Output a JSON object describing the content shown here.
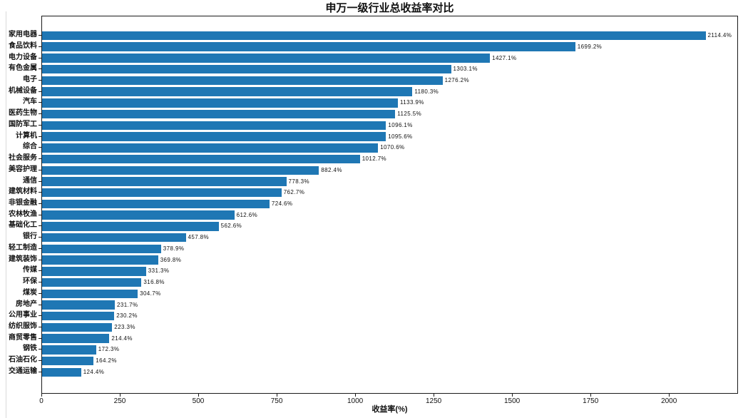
{
  "window": {
    "background": "#ffffff"
  },
  "chart_data": {
    "type": "bar",
    "orientation": "horizontal",
    "title": "申万一级行业总收益率对比",
    "xlabel": "收益率(%)",
    "ylabel": "",
    "categories": [
      "家用电器",
      "食品饮料",
      "电力设备",
      "有色金属",
      "电子",
      "机械设备",
      "汽车",
      "医药生物",
      "国防军工",
      "计算机",
      "综合",
      "社会服务",
      "美容护理",
      "通信",
      "建筑材料",
      "非银金融",
      "农林牧渔",
      "基础化工",
      "银行",
      "轻工制造",
      "建筑装饰",
      "传媒",
      "环保",
      "煤炭",
      "房地产",
      "公用事业",
      "纺织服饰",
      "商贸零售",
      "钢铁",
      "石油石化",
      "交通运输"
    ],
    "values": [
      2114.4,
      1699.2,
      1427.1,
      1303.1,
      1276.2,
      1180.3,
      1133.9,
      1125.5,
      1096.1,
      1095.6,
      1070.6,
      1012.7,
      882.4,
      778.3,
      762.7,
      724.6,
      612.6,
      562.6,
      457.8,
      378.9,
      369.8,
      331.3,
      316.8,
      304.7,
      231.7,
      230.2,
      223.3,
      214.4,
      172.3,
      164.2,
      124.4
    ],
    "value_labels": [
      "2114.4%",
      "1699.2%",
      "1427.1%",
      "1303.1%",
      "1276.2%",
      "1180.3%",
      "1133.9%",
      "1125.5%",
      "1096.1%",
      "1095.6%",
      "1070.6%",
      "1012.7%",
      "882.4%",
      "778.3%",
      "762.7%",
      "724.6%",
      "612.6%",
      "562.6%",
      "457.8%",
      "378.9%",
      "369.8%",
      "331.3%",
      "316.8%",
      "304.7%",
      "231.7%",
      "230.2%",
      "223.3%",
      "214.4%",
      "172.3%",
      "164.2%",
      "124.4%"
    ],
    "xticks": [
      0,
      250,
      500,
      750,
      1000,
      1250,
      1500,
      1750,
      2000
    ],
    "xlim": [
      0,
      2220
    ],
    "sort": "descending",
    "grid": false,
    "bar_color": "#1f77b4",
    "axis_color": "#1a1a1a",
    "text_color": "#111111"
  }
}
